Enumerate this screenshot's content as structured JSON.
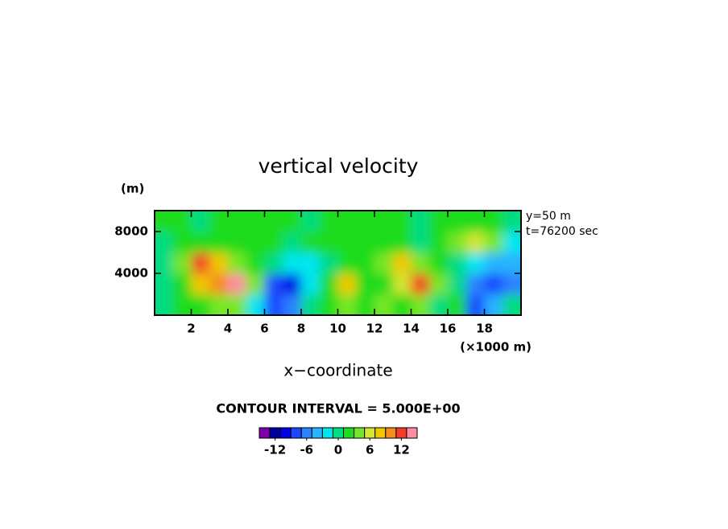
{
  "chart_data": {
    "type": "heatmap",
    "title": "vertical velocity",
    "y_unit": "(m)",
    "x_unit": "(×1000 m)",
    "xlabel": "x−coordinate",
    "annotations": [
      "y=50 m",
      "t=76200 sec"
    ],
    "contour_text": "CONTOUR INTERVAL = 5.000E+00",
    "xlim": [
      0,
      20
    ],
    "ylim": [
      0,
      10000
    ],
    "xticks": [
      2,
      4,
      6,
      8,
      10,
      12,
      14,
      16,
      18
    ],
    "yticks": [
      4000,
      8000
    ],
    "x": [
      0.5,
      1.5,
      2.5,
      3.5,
      4.5,
      5.5,
      6.5,
      7.5,
      8.5,
      9.5,
      10.5,
      11.5,
      12.5,
      13.5,
      14.5,
      15.5,
      16.5,
      17.5,
      18.5,
      19.5
    ],
    "y": [
      1000,
      3000,
      5000,
      7000,
      9000
    ],
    "z": [
      [
        0,
        1,
        2,
        3,
        4,
        -2,
        -8,
        -6,
        -1,
        1,
        3,
        1,
        4,
        2,
        3,
        0,
        1,
        -9,
        -5,
        0
      ],
      [
        0,
        2,
        8,
        10,
        13,
        4,
        -8,
        -10,
        -3,
        2,
        8,
        1,
        2,
        5,
        12,
        4,
        0,
        -6,
        -9,
        -7
      ],
      [
        -1,
        3,
        12,
        8,
        4,
        1,
        -1,
        -3,
        -2,
        0,
        1,
        1,
        4,
        8,
        4,
        1,
        -1,
        -2,
        -4,
        -5
      ],
      [
        0,
        1,
        1,
        1,
        2,
        2,
        1,
        0,
        1,
        1,
        1,
        1,
        1,
        1,
        0,
        2,
        3,
        6,
        3,
        -2
      ],
      [
        1,
        1,
        0,
        1,
        2,
        1,
        2,
        1,
        0,
        1,
        1,
        2,
        1,
        1,
        0,
        1,
        1,
        2,
        1,
        0
      ]
    ],
    "colorbar": {
      "levels": [
        -15,
        -13,
        -11,
        -9,
        -7,
        -5,
        -3,
        -1,
        1,
        3,
        5,
        7,
        9,
        11,
        13,
        15
      ],
      "colors": [
        "#7a00a8",
        "#0000a0",
        "#0000e6",
        "#1e46ff",
        "#2a82ff",
        "#28b4ff",
        "#00e6f0",
        "#00dc82",
        "#1edc1e",
        "#78e628",
        "#d2e632",
        "#f0c800",
        "#f58c1e",
        "#f53c28",
        "#ff8ca0"
      ],
      "ticks": [
        -12,
        -6,
        0,
        6,
        12
      ]
    }
  }
}
